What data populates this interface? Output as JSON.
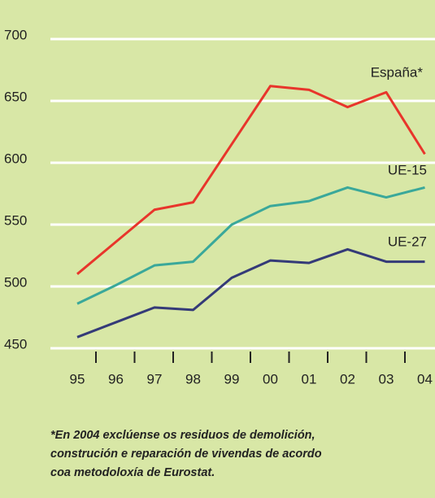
{
  "chart_data": {
    "type": "line",
    "categories": [
      "95",
      "96",
      "97",
      "98",
      "99",
      "00",
      "01",
      "02",
      "03",
      "04"
    ],
    "series": [
      {
        "name": "España*",
        "color": "#e8352b",
        "values": [
          510,
          536,
          562,
          568,
          615,
          662,
          659,
          645,
          657,
          607
        ]
      },
      {
        "name": "UE-15",
        "color": "#3aa89a",
        "values": [
          486,
          501,
          517,
          520,
          550,
          565,
          569,
          580,
          572,
          580
        ]
      },
      {
        "name": "UE-27",
        "color": "#343a78",
        "values": [
          459,
          471,
          483,
          481,
          507,
          521,
          519,
          530,
          520,
          520
        ]
      }
    ],
    "ylim": [
      450,
      700
    ],
    "yticks": [
      450,
      500,
      550,
      600,
      650,
      700
    ],
    "grid": true,
    "footnote": [
      "*En 2004 exclúense os residuos de demolición,",
      "construción e reparación de vivendas de acordo",
      "coa metodoloxía de Eurostat."
    ]
  }
}
